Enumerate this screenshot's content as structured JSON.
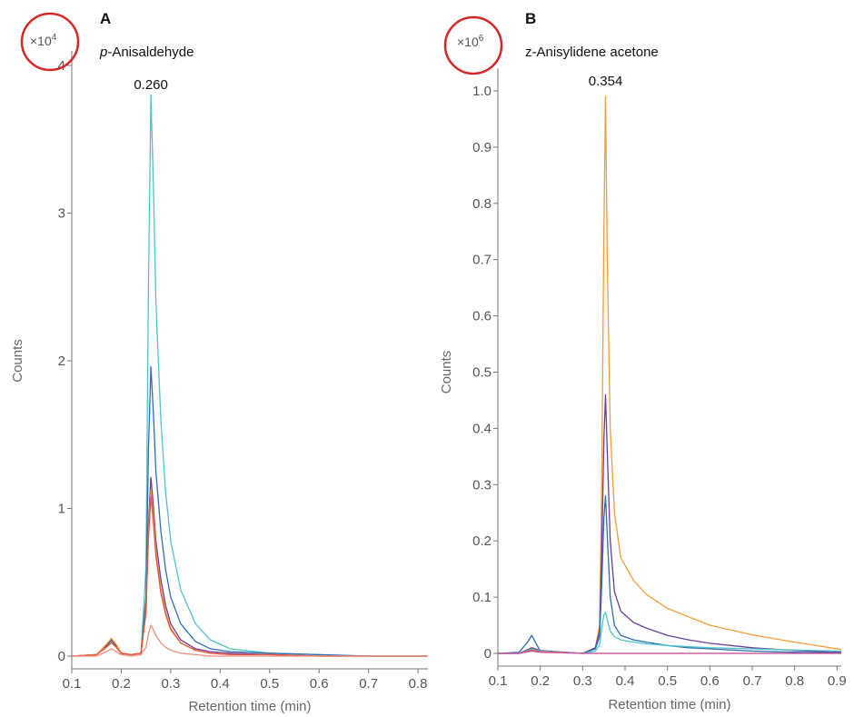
{
  "chart_data": [
    {
      "type": "line",
      "panel": "A",
      "title_prefix_italic": "p",
      "title_rest": "-Anisaldehyde",
      "xlabel": "Retention time (min)",
      "ylabel": "Counts",
      "y_multiplier": "×10",
      "y_multiplier_exp": "4",
      "peak_label": "0.260",
      "peak_x": 0.26,
      "xlim": [
        0.1,
        0.82
      ],
      "ylim": [
        -0.08,
        4.1
      ],
      "xticks": [
        0.1,
        0.2,
        0.3,
        0.4,
        0.5,
        0.6,
        0.7,
        0.8
      ],
      "xtick_labels": [
        "0.1",
        "0.2",
        "0.3",
        "0.4",
        "0.5",
        "0.6",
        "0.7",
        "0.8"
      ],
      "yticks": [
        0,
        1,
        2,
        3,
        4
      ],
      "ytick_labels": [
        "0",
        "1",
        "2",
        "3",
        "4"
      ],
      "series": [
        {
          "color": "#4fc3c9",
          "x": [
            0.1,
            0.15,
            0.17,
            0.18,
            0.19,
            0.2,
            0.22,
            0.24,
            0.25,
            0.255,
            0.26,
            0.265,
            0.27,
            0.28,
            0.29,
            0.3,
            0.32,
            0.35,
            0.38,
            0.42,
            0.5,
            0.6,
            0.7,
            0.82
          ],
          "y": [
            0.0,
            0.01,
            0.06,
            0.1,
            0.06,
            0.02,
            0.01,
            0.02,
            0.6,
            2.5,
            3.8,
            3.2,
            2.4,
            1.6,
            1.1,
            0.78,
            0.45,
            0.22,
            0.11,
            0.05,
            0.02,
            0.01,
            0.0,
            0.0
          ]
        },
        {
          "color": "#2e6db5",
          "x": [
            0.1,
            0.15,
            0.17,
            0.18,
            0.19,
            0.2,
            0.22,
            0.24,
            0.25,
            0.255,
            0.26,
            0.265,
            0.27,
            0.28,
            0.29,
            0.3,
            0.32,
            0.35,
            0.38,
            0.42,
            0.5,
            0.6,
            0.7,
            0.82
          ],
          "y": [
            0.0,
            0.01,
            0.07,
            0.12,
            0.07,
            0.02,
            0.01,
            0.02,
            0.4,
            1.4,
            1.96,
            1.65,
            1.25,
            0.85,
            0.58,
            0.4,
            0.22,
            0.1,
            0.05,
            0.03,
            0.02,
            0.01,
            0.0,
            0.0
          ]
        },
        {
          "color": "#6a3d9a",
          "x": [
            0.1,
            0.15,
            0.17,
            0.18,
            0.19,
            0.2,
            0.22,
            0.24,
            0.25,
            0.255,
            0.26,
            0.265,
            0.27,
            0.28,
            0.29,
            0.3,
            0.32,
            0.35,
            0.38,
            0.42,
            0.5,
            0.6,
            0.7,
            0.82
          ],
          "y": [
            0.0,
            0.01,
            0.07,
            0.11,
            0.07,
            0.02,
            0.01,
            0.02,
            0.3,
            0.9,
            1.21,
            1.02,
            0.78,
            0.52,
            0.34,
            0.22,
            0.11,
            0.05,
            0.03,
            0.02,
            0.01,
            0.0,
            0.0,
            0.0
          ]
        },
        {
          "color": "#f39c3a",
          "x": [
            0.1,
            0.15,
            0.17,
            0.18,
            0.19,
            0.2,
            0.22,
            0.24,
            0.25,
            0.255,
            0.26,
            0.265,
            0.27,
            0.28,
            0.29,
            0.3,
            0.32,
            0.35,
            0.38,
            0.42,
            0.5,
            0.6,
            0.7,
            0.82
          ],
          "y": [
            0.0,
            0.01,
            0.08,
            0.12,
            0.08,
            0.02,
            0.01,
            0.02,
            0.3,
            0.85,
            1.12,
            0.95,
            0.72,
            0.46,
            0.3,
            0.19,
            0.09,
            0.04,
            0.02,
            0.01,
            0.01,
            0.0,
            0.0,
            0.0
          ]
        },
        {
          "color": "#e8553a",
          "x": [
            0.1,
            0.15,
            0.17,
            0.18,
            0.19,
            0.2,
            0.22,
            0.24,
            0.25,
            0.255,
            0.26,
            0.265,
            0.27,
            0.28,
            0.29,
            0.3,
            0.32,
            0.35,
            0.38,
            0.42,
            0.5,
            0.6,
            0.7,
            0.82
          ],
          "y": [
            0.0,
            0.01,
            0.06,
            0.09,
            0.06,
            0.02,
            0.01,
            0.02,
            0.3,
            0.8,
            1.08,
            0.9,
            0.68,
            0.43,
            0.28,
            0.18,
            0.09,
            0.04,
            0.02,
            0.01,
            0.01,
            0.0,
            0.0,
            0.0
          ]
        },
        {
          "color": "#f08c7a",
          "x": [
            0.1,
            0.15,
            0.17,
            0.18,
            0.19,
            0.2,
            0.22,
            0.24,
            0.25,
            0.255,
            0.26,
            0.265,
            0.27,
            0.28,
            0.29,
            0.3,
            0.32,
            0.35,
            0.38,
            0.42,
            0.5,
            0.6,
            0.7,
            0.82
          ],
          "y": [
            0.0,
            0.0,
            0.03,
            0.05,
            0.03,
            0.01,
            0.0,
            0.01,
            0.06,
            0.15,
            0.21,
            0.18,
            0.14,
            0.09,
            0.06,
            0.04,
            0.02,
            0.01,
            0.0,
            0.0,
            0.0,
            0.0,
            0.0,
            0.0
          ]
        }
      ]
    },
    {
      "type": "line",
      "panel": "B",
      "title_prefix_italic": "",
      "title_rest": "z-Anisylidene acetone",
      "xlabel": "Retention time (min)",
      "ylabel": "Counts",
      "y_multiplier": "×10",
      "y_multiplier_exp": "6",
      "peak_label": "0.354",
      "peak_x": 0.354,
      "xlim": [
        0.1,
        0.91
      ],
      "ylim": [
        -0.015,
        1.04
      ],
      "xticks": [
        0.1,
        0.2,
        0.3,
        0.4,
        0.5,
        0.6,
        0.7,
        0.8,
        0.9
      ],
      "xtick_labels": [
        "0.1",
        "0.2",
        "0.3",
        "0.4",
        "0.5",
        "0.6",
        "0.7",
        "0.8",
        "0.9"
      ],
      "yticks": [
        0,
        0.1,
        0.2,
        0.3,
        0.4,
        0.5,
        0.6,
        0.7,
        0.8,
        0.9,
        1.0
      ],
      "ytick_labels": [
        "0",
        "0.1",
        "0.2",
        "0.3",
        "0.4",
        "0.5",
        "0.6",
        "0.7",
        "0.8",
        "0.9",
        "1.0"
      ],
      "series": [
        {
          "color": "#f39c3a",
          "x": [
            0.1,
            0.15,
            0.18,
            0.2,
            0.3,
            0.33,
            0.34,
            0.345,
            0.35,
            0.354,
            0.358,
            0.365,
            0.375,
            0.39,
            0.42,
            0.45,
            0.5,
            0.55,
            0.6,
            0.7,
            0.8,
            0.91
          ],
          "y": [
            0.0,
            0.0,
            0.01,
            0.005,
            0.0,
            0.01,
            0.05,
            0.3,
            0.75,
            0.99,
            0.7,
            0.4,
            0.25,
            0.17,
            0.13,
            0.105,
            0.08,
            0.065,
            0.05,
            0.033,
            0.02,
            0.007
          ]
        },
        {
          "color": "#6a3d9a",
          "x": [
            0.1,
            0.15,
            0.18,
            0.2,
            0.3,
            0.33,
            0.34,
            0.345,
            0.35,
            0.354,
            0.358,
            0.365,
            0.375,
            0.39,
            0.42,
            0.45,
            0.5,
            0.55,
            0.6,
            0.7,
            0.8,
            0.91
          ],
          "y": [
            0.0,
            0.0,
            0.01,
            0.005,
            0.0,
            0.01,
            0.04,
            0.18,
            0.38,
            0.46,
            0.36,
            0.2,
            0.11,
            0.075,
            0.055,
            0.045,
            0.032,
            0.024,
            0.018,
            0.01,
            0.005,
            0.002
          ]
        },
        {
          "color": "#2e6db5",
          "x": [
            0.1,
            0.15,
            0.17,
            0.18,
            0.19,
            0.2,
            0.3,
            0.33,
            0.34,
            0.345,
            0.35,
            0.354,
            0.358,
            0.365,
            0.375,
            0.39,
            0.42,
            0.45,
            0.5,
            0.55,
            0.6,
            0.7,
            0.8,
            0.91
          ],
          "y": [
            0.0,
            0.002,
            0.02,
            0.032,
            0.018,
            0.004,
            0.0,
            0.008,
            0.03,
            0.12,
            0.24,
            0.28,
            0.21,
            0.1,
            0.05,
            0.032,
            0.024,
            0.02,
            0.014,
            0.01,
            0.008,
            0.004,
            0.002,
            0.001
          ]
        },
        {
          "color": "#4fc3c9",
          "x": [
            0.1,
            0.15,
            0.18,
            0.2,
            0.3,
            0.33,
            0.34,
            0.345,
            0.35,
            0.354,
            0.358,
            0.365,
            0.375,
            0.39,
            0.42,
            0.45,
            0.5,
            0.55,
            0.6,
            0.7,
            0.8,
            0.91
          ],
          "y": [
            0.0,
            0.0,
            0.008,
            0.004,
            0.0,
            0.004,
            0.015,
            0.045,
            0.068,
            0.073,
            0.06,
            0.04,
            0.03,
            0.024,
            0.02,
            0.017,
            0.014,
            0.012,
            0.01,
            0.008,
            0.006,
            0.004
          ]
        },
        {
          "color": "#e8553a",
          "x": [
            0.1,
            0.15,
            0.18,
            0.2,
            0.3,
            0.35,
            0.4,
            0.5,
            0.6,
            0.7,
            0.8,
            0.91
          ],
          "y": [
            0.0,
            0.0,
            0.006,
            0.003,
            0.0,
            0.0,
            0.0,
            0.0,
            0.0,
            0.0,
            0.0,
            0.0
          ]
        },
        {
          "color": "#c85aa8",
          "x": [
            0.1,
            0.15,
            0.18,
            0.2,
            0.3,
            0.35,
            0.4,
            0.5,
            0.6,
            0.7,
            0.8,
            0.91
          ],
          "y": [
            0.0,
            0.0,
            0.004,
            0.002,
            0.0,
            0.0,
            0.0,
            0.0,
            0.0,
            0.0,
            0.0,
            0.0
          ]
        }
      ]
    }
  ]
}
